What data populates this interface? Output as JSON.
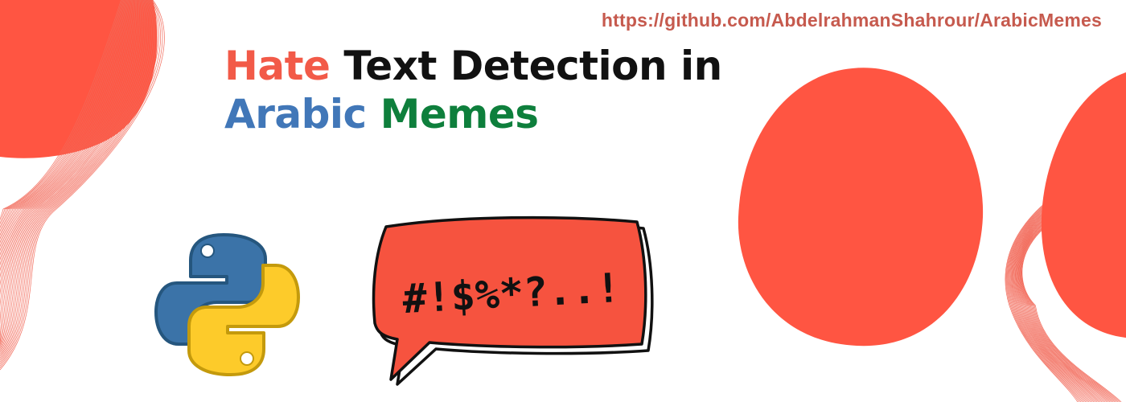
{
  "banner": {
    "url": "https://github.com/AbdelrahmanShahrour/ArabicMemes",
    "title": {
      "line1": [
        {
          "text": "Hate",
          "color": "#f25a48"
        },
        {
          "text": "Text Detection in",
          "color": "#111111"
        }
      ],
      "line2": [
        {
          "text": "Arabic",
          "color": "#4177b8"
        },
        {
          "text": "Memes",
          "color": "#0e7f3c"
        }
      ]
    },
    "bubble_text": "#!$%*?..!",
    "icons": {
      "python_logo": "python-logo-icon",
      "speech_bubble": "speech-bubble-icon"
    },
    "colors": {
      "accent_red": "#ff5542",
      "url_color": "#c65a4e",
      "python_blue": "#3b73a8",
      "python_yellow": "#fdcb2a"
    }
  }
}
